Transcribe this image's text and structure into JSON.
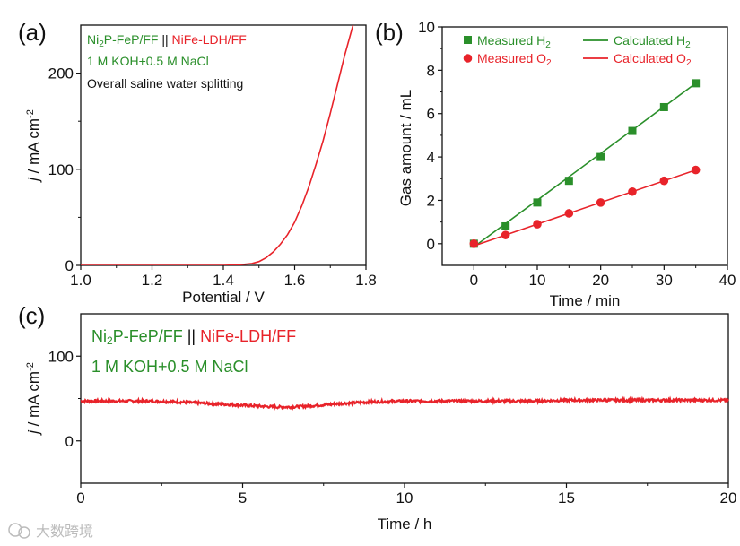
{
  "colors": {
    "green": "#2a8f2a",
    "red": "#e8232a",
    "axis": "#111111",
    "watermark": "#b5b5b5"
  },
  "watermark": {
    "text": "大数跨境",
    "icon": "wechat-logo-icon"
  },
  "chart_data": [
    {
      "id": "a",
      "panel_label": "(a)",
      "type": "line",
      "xlabel": "Potential / V",
      "ylabel_italic": "j",
      "ylabel_unit": " / mA cm",
      "ylabel_sup": "-2",
      "xlim": [
        1.0,
        1.8
      ],
      "ylim": [
        0,
        250
      ],
      "xticks": [
        "1.0",
        "1.2",
        "1.4",
        "1.6",
        "1.8"
      ],
      "xtick_values": [
        1.0,
        1.2,
        1.4,
        1.6,
        1.8
      ],
      "yticks": [
        "0",
        "100",
        "200"
      ],
      "ytick_values": [
        0,
        100,
        200
      ],
      "grid": false,
      "annotations": {
        "line1_green": "Ni",
        "line1_green_sub": "2",
        "line1_green_rest": "P-FeP/FF",
        "line1_sep": " || ",
        "line1_red": "NiFe-LDH/FF",
        "line2": "1 M KOH+0.5 M NaCl",
        "line3": "Overall saline water splitting"
      },
      "series": [
        {
          "color": "#e8232a",
          "x": [
            1.0,
            1.2,
            1.4,
            1.44,
            1.48,
            1.5,
            1.52,
            1.54,
            1.56,
            1.58,
            1.6,
            1.62,
            1.64,
            1.66,
            1.68,
            1.7,
            1.72,
            1.74,
            1.76,
            1.77
          ],
          "y": [
            0,
            0,
            0,
            0.5,
            2,
            4,
            8,
            14,
            22,
            32,
            45,
            62,
            82,
            105,
            130,
            158,
            188,
            218,
            245,
            258
          ]
        }
      ]
    },
    {
      "id": "b",
      "panel_label": "(b)",
      "type": "scatter",
      "xlabel": "Time / min",
      "ylabel": "Gas amount / mL",
      "xlim": [
        -5,
        40
      ],
      "ylim": [
        -1,
        10
      ],
      "xticks": [
        "0",
        "10",
        "20",
        "30",
        "40"
      ],
      "xtick_values": [
        0,
        10,
        20,
        30,
        40
      ],
      "yticks": [
        "0",
        "2",
        "4",
        "6",
        "8",
        "10"
      ],
      "ytick_values": [
        0,
        2,
        4,
        6,
        8,
        10
      ],
      "grid": false,
      "legend_position": "top",
      "legend": {
        "measured_h2": "Measured H",
        "measured_h2_sub": "2",
        "measured_o2": "Measured O",
        "measured_o2_sub": "2",
        "calculated_h2": "Calculated H",
        "calculated_h2_sub": "2",
        "calculated_o2": "Calculated O",
        "calculated_o2_sub": "2"
      },
      "series": [
        {
          "key": "measured_h2",
          "marker": "square",
          "color": "#2a8f2a",
          "x": [
            0,
            5,
            10,
            15,
            20,
            25,
            30,
            35
          ],
          "y": [
            0,
            0.8,
            1.9,
            2.9,
            4.0,
            5.2,
            6.3,
            7.4
          ]
        },
        {
          "key": "measured_o2",
          "marker": "circle",
          "color": "#e8232a",
          "x": [
            0,
            5,
            10,
            15,
            20,
            25,
            30,
            35
          ],
          "y": [
            0,
            0.4,
            0.9,
            1.4,
            1.9,
            2.4,
            2.9,
            3.4
          ]
        },
        {
          "key": "calculated_h2",
          "marker": "line",
          "color": "#2a8f2a",
          "x": [
            0,
            35
          ],
          "y": [
            -0.15,
            7.4
          ]
        },
        {
          "key": "calculated_o2",
          "marker": "line",
          "color": "#e8232a",
          "x": [
            0,
            35
          ],
          "y": [
            -0.1,
            3.4
          ]
        }
      ]
    },
    {
      "id": "c",
      "panel_label": "(c)",
      "type": "line",
      "xlabel": "Time / h",
      "ylabel_italic": "j",
      "ylabel_unit": " / mA cm",
      "ylabel_sup": "-2",
      "xlim": [
        0,
        20
      ],
      "ylim": [
        -50,
        150
      ],
      "xticks": [
        "0",
        "5",
        "10",
        "15",
        "20"
      ],
      "xtick_values": [
        0,
        5,
        10,
        15,
        20
      ],
      "yticks": [
        "0",
        "100"
      ],
      "ytick_values": [
        0,
        100
      ],
      "grid": false,
      "annotations": {
        "line1_green": "Ni",
        "line1_green_sub": "2",
        "line1_green_rest": "P-FeP/FF",
        "line1_sep": " || ",
        "line1_red": "NiFe-LDH/FF",
        "line2": "1 M KOH+0.5 M NaCl"
      },
      "series": [
        {
          "color": "#e8232a",
          "x": [
            0,
            1,
            2,
            3,
            4,
            5,
            5.5,
            6,
            6.5,
            7,
            8,
            9,
            10,
            11,
            12,
            13,
            14,
            15,
            16,
            17,
            18,
            19,
            20
          ],
          "y": [
            47,
            47,
            47,
            46,
            44,
            42,
            41,
            40,
            40,
            41,
            44,
            46,
            47,
            47,
            47,
            47,
            47,
            48,
            48,
            48,
            48,
            48,
            48
          ]
        }
      ]
    }
  ]
}
